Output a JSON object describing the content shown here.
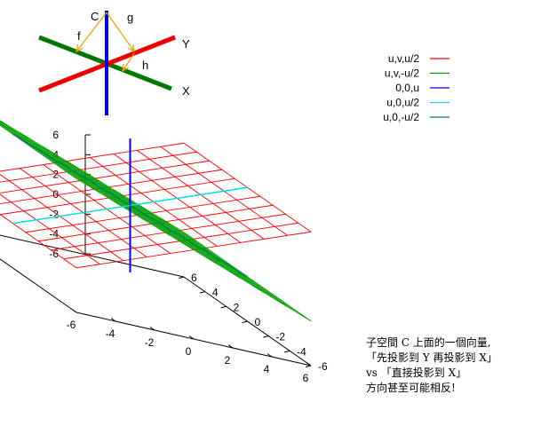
{
  "chart_data": {
    "type": "surface3d",
    "xrange": [
      -6,
      6
    ],
    "yrange": [
      -6,
      6
    ],
    "zrange": [
      -6,
      6
    ],
    "x_ticks": [
      -6,
      -4,
      -2,
      0,
      2,
      4,
      6
    ],
    "y_ticks": [
      -6,
      -4,
      -2,
      0,
      2,
      4,
      6
    ],
    "z_ticks": [
      -6,
      -4,
      -2,
      0,
      2,
      4,
      6
    ],
    "legend_position": "top-right",
    "series": [
      {
        "name": "u,v,u/2",
        "expression": "z = u/2",
        "kind": "plane",
        "color": "#ff0000"
      },
      {
        "name": "u,v,-u/2",
        "expression": "z = -u/2",
        "kind": "plane",
        "color": "#00a000"
      },
      {
        "name": "0,0,u",
        "expression": "x = 0, y = 0",
        "kind": "line",
        "color": "#0000ff"
      },
      {
        "name": "u,0,u/2",
        "expression": "y = 0, z = u/2",
        "kind": "line",
        "color": "#00e0e0"
      },
      {
        "name": "u,0,-u/2",
        "expression": "y = 0, z = -u/2",
        "kind": "line",
        "color": "#008060"
      }
    ]
  },
  "inset": {
    "labels": {
      "c": "C",
      "f": "f",
      "g": "g",
      "h": "h",
      "x": "X",
      "y": "Y"
    },
    "colors": {
      "c": "#0000dd",
      "y": "#ee0000",
      "x": "#007700",
      "arrow": "#f0a000"
    }
  },
  "note": {
    "line1": "子空間 C 上面的一個向量,",
    "line2": "「先投影到 Y 再投影到 X」",
    "line3": "vs 「直接投影到 X」",
    "line4": "方向甚至可能相反!"
  }
}
